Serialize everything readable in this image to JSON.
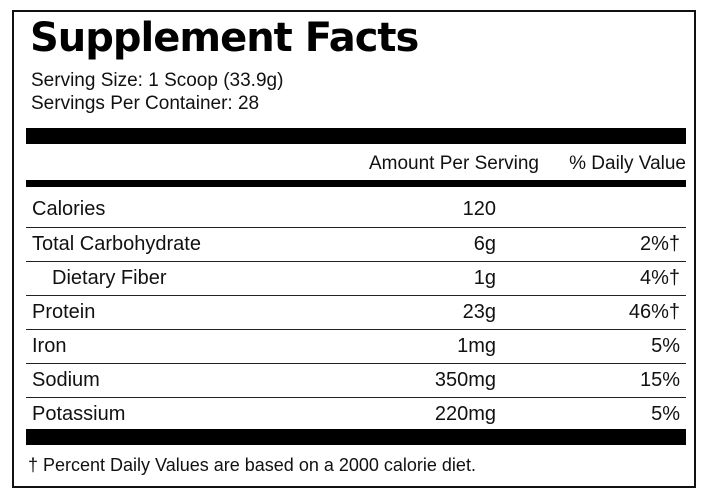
{
  "title": "Supplement Facts",
  "serving_size": "Serving Size: 1 Scoop (33.9g)",
  "servings_per_container": "Servings Per Container: 28",
  "headers": {
    "amount": "Amount Per Serving",
    "daily_value": "% Daily Value"
  },
  "rows": [
    {
      "name": "Calories",
      "amount": "120",
      "dv": ""
    },
    {
      "name": "Total Carbohydrate",
      "amount": "6g",
      "dv": "2%†"
    },
    {
      "name": "Dietary Fiber",
      "amount": "1g",
      "dv": "4%†"
    },
    {
      "name": "Protein",
      "amount": "23g",
      "dv": "46%†"
    },
    {
      "name": "Iron",
      "amount": "1mg",
      "dv": "5%"
    },
    {
      "name": "Sodium",
      "amount": "350mg",
      "dv": "15%"
    },
    {
      "name": "Potassium",
      "amount": "220mg",
      "dv": "5%"
    }
  ],
  "footnote": "† Percent Daily Values are based on a 2000 calorie diet."
}
